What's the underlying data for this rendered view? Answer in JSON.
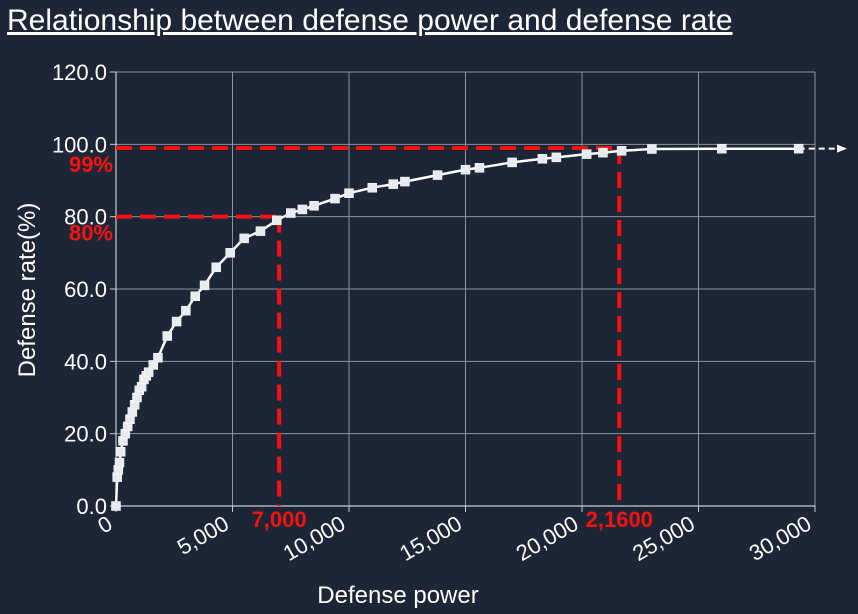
{
  "chart_data": {
    "type": "line",
    "title": "Relationship between defense power and defense rate",
    "xlabel": "Defense power",
    "ylabel": "Defense rate(%)",
    "xlim": [
      0,
      30000
    ],
    "ylim": [
      0,
      120
    ],
    "x_ticks": [
      "0",
      "5,000",
      "10,000",
      "15,000",
      "20,000",
      "25,000",
      "30,000"
    ],
    "y_ticks": [
      "0.0",
      "20.0",
      "40.0",
      "60.0",
      "80.0",
      "100.0",
      "120.0"
    ],
    "grid": true,
    "line_color": "#ffffff",
    "series": [
      {
        "x": [
          0,
          50,
          100,
          150,
          200,
          300,
          400,
          500,
          600,
          700,
          800,
          900,
          1000,
          1100,
          1200,
          1300,
          1400,
          1600,
          1800,
          2200,
          2600,
          3000,
          3400,
          3800,
          4300,
          4900,
          5500,
          6200,
          6900,
          7500,
          8000,
          8500,
          9400,
          10000,
          11000,
          11900,
          12400,
          13800,
          15000,
          15600,
          17000,
          18300,
          18900,
          20200,
          20900,
          21700,
          23000,
          26000,
          29300
        ],
        "y": [
          0,
          8,
          10,
          12,
          15,
          18,
          20,
          22,
          24,
          26,
          28,
          30,
          32,
          33,
          35,
          36,
          37,
          39,
          41,
          47,
          51,
          54,
          58,
          61,
          66,
          70,
          74,
          76,
          79,
          81,
          82,
          83,
          85,
          86.5,
          88,
          89,
          89.7,
          91.5,
          93,
          93.5,
          95,
          96,
          96.4,
          97.3,
          97.7,
          98.2,
          98.7,
          98.8,
          98.8
        ]
      }
    ],
    "annotations": [
      {
        "x": 7000,
        "y": 80,
        "x_label": "7,000",
        "y_label": "80%"
      },
      {
        "x": 21600,
        "y": 99,
        "x_label": "2,1600",
        "y_label": "99%"
      }
    ],
    "annotation_color": "#ff1010"
  }
}
